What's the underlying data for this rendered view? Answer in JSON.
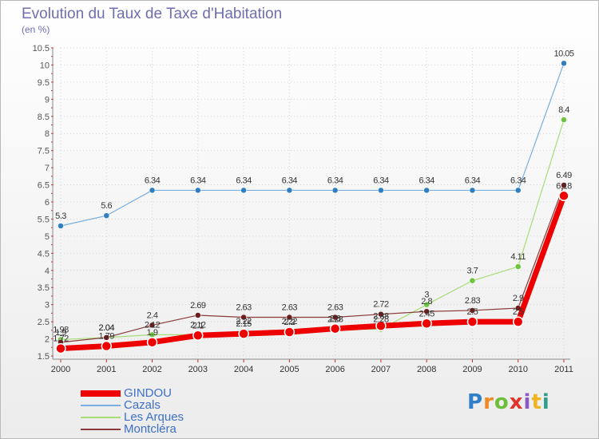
{
  "title": "Evolution du Taux de Taxe d'Habitation",
  "subtitle": "(en %)",
  "logo": {
    "text": "Proxiti",
    "colors": [
      "#2f7fc9",
      "#f08a24",
      "#6dbf3a",
      "#e0342c",
      "#8a5ac2",
      "#f0b420",
      "#2f9e8f"
    ]
  },
  "chart_data": {
    "type": "line",
    "title": "Evolution du Taux de Taxe d'Habitation",
    "subtitle": "(en %)",
    "xlabel": "",
    "ylabel": "",
    "categories": [
      "2000",
      "2001",
      "2002",
      "2003",
      "2004",
      "2005",
      "2006",
      "2007",
      "2008",
      "2009",
      "2010",
      "2011"
    ],
    "ylim": [
      1.5,
      10.5
    ],
    "yticks": [
      1.5,
      2,
      2.5,
      3,
      3.5,
      4,
      4.5,
      5,
      5.5,
      6,
      6.5,
      7,
      7.5,
      8,
      8.5,
      9,
      9.5,
      10,
      10.5
    ],
    "ytick_labels": [
      "1.5",
      "2",
      "2.5",
      "3",
      "3.5",
      "4",
      "4.5",
      "5",
      "5.5",
      "6",
      "6.5",
      "7",
      "7.5",
      "8",
      "8.5",
      "9",
      "9.5",
      "10",
      "10.5"
    ],
    "grid": true,
    "legend_position": "bottom-left",
    "series": [
      {
        "name": "Cazals",
        "color": "#79aee0",
        "marker": "#2f7fc0",
        "width": 1.2,
        "marker_r": 3.5,
        "values": [
          5.3,
          5.6,
          6.34,
          6.34,
          6.34,
          6.34,
          6.34,
          6.34,
          6.34,
          6.34,
          6.34,
          10.05
        ],
        "labels": [
          "5.3",
          "5.6",
          "6.34",
          "6.34",
          "6.34",
          "6.34",
          "6.34",
          "6.34",
          "6.34",
          "6.34",
          "6.34",
          "10.05"
        ]
      },
      {
        "name": "Les Arques",
        "color": "#a6dd77",
        "marker": "#6cc53a",
        "width": 1.2,
        "marker_r": 3.5,
        "values": [
          1.98,
          2.04,
          2.12,
          2.12,
          2.22,
          2.22,
          2.28,
          2.28,
          3.0,
          3.7,
          4.11,
          8.4
        ],
        "labels": [
          "1.98",
          "2.04",
          "2.12",
          "2.12",
          "2.22",
          "2.22",
          "2.28",
          "2.28",
          "3",
          "3.7",
          "4.11",
          "8.4"
        ]
      },
      {
        "name": "Montcléra",
        "color": "#8a3a3a",
        "marker": "#6b1e1e",
        "width": 1.2,
        "marker_r": 3.5,
        "values": [
          1.9,
          2.04,
          2.4,
          2.69,
          2.63,
          2.63,
          2.63,
          2.72,
          2.8,
          2.83,
          2.9,
          6.49
        ],
        "labels": [
          "1.9",
          "2.04",
          "2.4",
          "2.69",
          "2.63",
          "2.63",
          "2.63",
          "2.72",
          "2.8",
          "2.83",
          "2.9",
          "6.49"
        ]
      },
      {
        "name": "GINDOU",
        "color": "#ee0000",
        "marker": "#ee0000",
        "width": 7,
        "marker_r": 6,
        "values": [
          1.72,
          1.79,
          1.9,
          2.1,
          2.15,
          2.2,
          2.3,
          2.38,
          2.45,
          2.5,
          2.5,
          6.18
        ],
        "labels": [
          "1.72",
          "1.79",
          "1.9",
          "2.1",
          "2.15",
          "2.2",
          "2.3",
          "2.38",
          "2.45",
          "2.5",
          "2.5",
          "6.18"
        ]
      }
    ],
    "legend_order": [
      "GINDOU",
      "Cazals",
      "Les Arques",
      "Montcléra"
    ]
  }
}
